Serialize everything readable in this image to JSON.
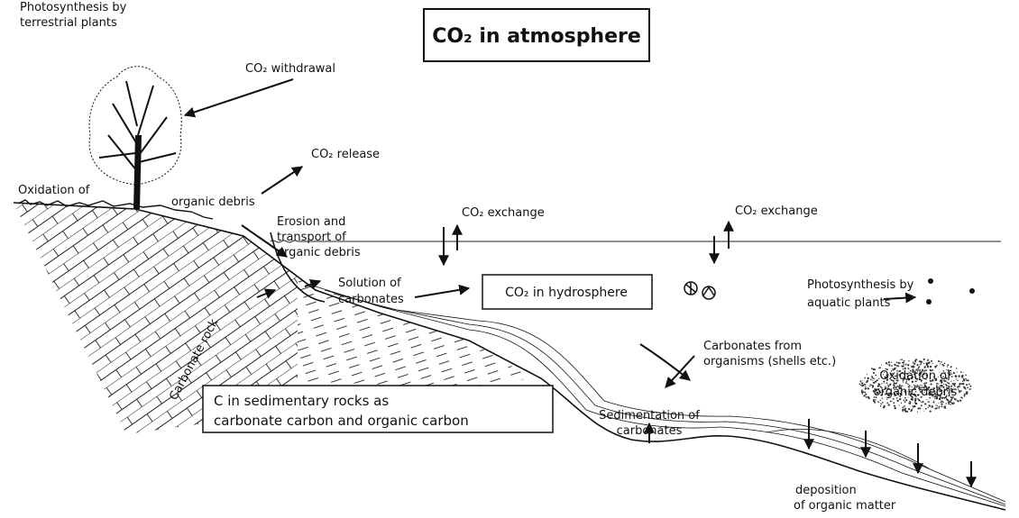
{
  "labels": [
    {
      "lines": [
        "Photosynthesis by",
        "terrestrial plants"
      ]
    },
    {
      "lines": [
        "CO₂ in atmosphere"
      ]
    },
    {
      "lines": [
        "CO₂ withdrawal"
      ]
    },
    {
      "lines": [
        "CO₂ release"
      ]
    },
    {
      "lines": [
        "Oxidation of",
        "organic debris"
      ]
    },
    {
      "lines": [
        "Erosion and",
        "transport of",
        "organic debris"
      ]
    },
    {
      "lines": [
        "CO₂ exchange"
      ]
    },
    {
      "lines": [
        "CO₂ exchange"
      ]
    },
    {
      "lines": [
        "Solution of",
        "carbonates"
      ]
    },
    {
      "lines": [
        "CO₂ in hydrosphere"
      ]
    },
    {
      "lines": [
        "Carbonate rock"
      ]
    },
    {
      "lines": [
        "Photosynthesis by",
        "aquatic plants"
      ]
    },
    {
      "lines": [
        "Carbonates from",
        "organisms (shells etc.)"
      ]
    },
    {
      "lines": [
        "Oxidation of",
        "organic debris"
      ]
    },
    {
      "lines": [
        "C in sedimentary rocks as",
        "carbonate carbon and organic carbon"
      ]
    },
    {
      "lines": [
        "Sedimentation of",
        "carbonates"
      ]
    },
    {
      "lines": [
        "deposition",
        "of organic matter"
      ]
    }
  ]
}
